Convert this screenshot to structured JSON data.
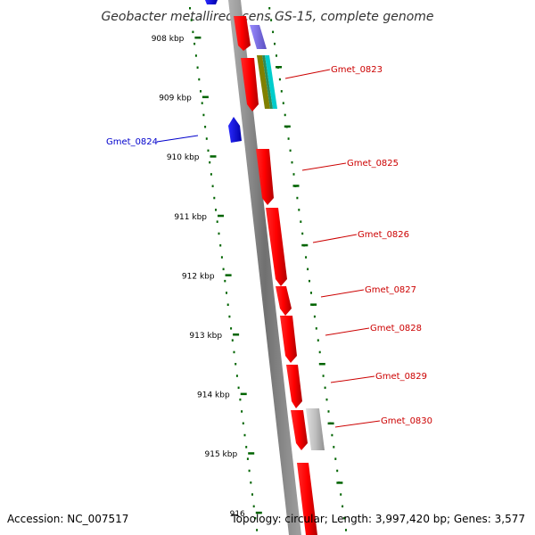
{
  "title": "Geobacter metallireducens GS-15, complete genome",
  "footer": {
    "accession": "Accession: NC_007517",
    "summary": "Topology: circular; Length: 3,997,420 bp; Genes: 3,577"
  },
  "ticks": [
    "908 kbp",
    "909 kbp",
    "910 kbp",
    "911 kbp",
    "912 kbp",
    "913 kbp",
    "914 kbp",
    "915 kbp",
    "916"
  ],
  "genes": [
    {
      "label": "Gmet_0823",
      "color": "#cc0000"
    },
    {
      "label": "Gmet_0824",
      "color": "#0000cc"
    },
    {
      "label": "Gmet_0825",
      "color": "#cc0000"
    },
    {
      "label": "Gmet_0826",
      "color": "#cc0000"
    },
    {
      "label": "Gmet_0827",
      "color": "#cc0000"
    },
    {
      "label": "Gmet_0828",
      "color": "#cc0000"
    },
    {
      "label": "Gmet_0829",
      "color": "#cc0000"
    },
    {
      "label": "Gmet_0830",
      "color": "#cc0000"
    }
  ],
  "colors": {
    "backbone": "#808080",
    "forward_gene": "#ff0000",
    "reverse_gene": "#0000ee",
    "tick_marks": "#006400",
    "feature_purple": "#7b68ee",
    "feature_olive": "#808000",
    "feature_green": "#2e8b57",
    "feature_cyan": "#00cccc",
    "feature_gray": "#c0c0c0"
  }
}
